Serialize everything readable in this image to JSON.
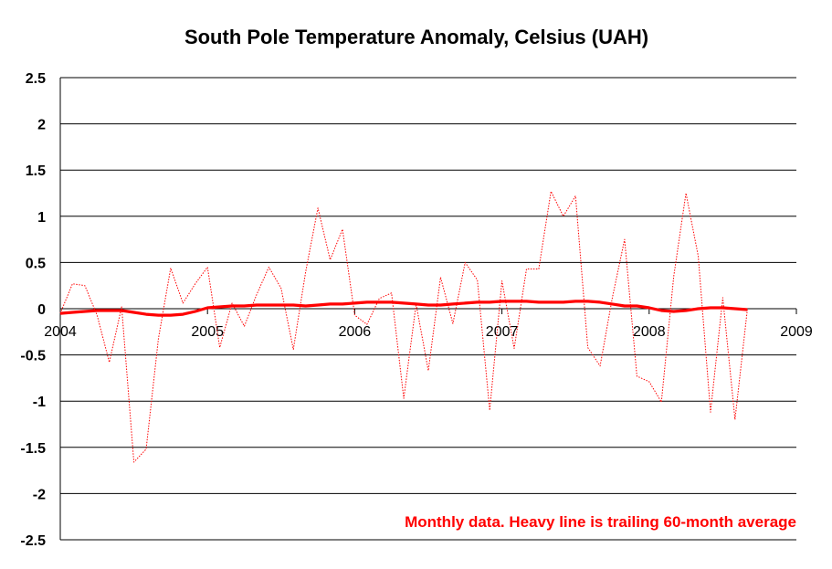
{
  "chart_data": {
    "type": "line",
    "title": "South Pole Temperature Anomaly, Celsius (UAH)",
    "annotation": "Monthly data.  Heavy line is trailing 60-month average",
    "xlabel": "",
    "ylabel": "",
    "xlim": [
      2004,
      2009
    ],
    "ylim": [
      -2.5,
      2.5
    ],
    "x_ticks": [
      "2004",
      "2005",
      "2006",
      "2007",
      "2008",
      "2009"
    ],
    "y_ticks": [
      "2.5",
      "2",
      "1.5",
      "1",
      "0.5",
      "0",
      "-0.5",
      "-1",
      "-1.5",
      "-2",
      "-2.5"
    ],
    "grid": true,
    "line_color": "#ff0000",
    "series": [
      {
        "style": "thin dotted",
        "x": [
          2004.0,
          2004.083,
          2004.167,
          2004.25,
          2004.333,
          2004.417,
          2004.5,
          2004.583,
          2004.667,
          2004.75,
          2004.833,
          2004.917,
          2005.0,
          2005.083,
          2005.167,
          2005.25,
          2005.333,
          2005.417,
          2005.5,
          2005.583,
          2005.667,
          2005.75,
          2005.833,
          2005.917,
          2006.0,
          2006.083,
          2006.167,
          2006.25,
          2006.333,
          2006.417,
          2006.5,
          2006.583,
          2006.667,
          2006.75,
          2006.833,
          2006.917,
          2007.0,
          2007.083,
          2007.167,
          2007.25,
          2007.333,
          2007.417,
          2007.5,
          2007.583,
          2007.667,
          2007.75,
          2007.833,
          2007.917,
          2008.0,
          2008.083,
          2008.167,
          2008.25,
          2008.333,
          2008.417,
          2008.5,
          2008.583,
          2008.667
        ],
        "values": [
          -0.05,
          0.27,
          0.25,
          -0.07,
          -0.58,
          0.02,
          -1.66,
          -1.52,
          -0.32,
          0.44,
          0.06,
          0.27,
          0.45,
          -0.42,
          0.06,
          -0.19,
          0.15,
          0.45,
          0.22,
          -0.44,
          0.4,
          1.09,
          0.53,
          0.86,
          -0.07,
          -0.17,
          0.11,
          0.17,
          -0.97,
          0.05,
          -0.67,
          0.34,
          -0.16,
          0.5,
          0.31,
          -1.1,
          0.3,
          -0.43,
          0.43,
          0.43,
          1.27,
          1.0,
          1.22,
          -0.42,
          -0.62,
          0.12,
          0.75,
          -0.73,
          -0.79,
          -1.01,
          0.35,
          1.25,
          0.57,
          -1.12,
          0.12,
          -1.2,
          -0.01
        ]
      },
      {
        "style": "heavy solid",
        "x": [
          2004.0,
          2004.083,
          2004.167,
          2004.25,
          2004.333,
          2004.417,
          2004.5,
          2004.583,
          2004.667,
          2004.75,
          2004.833,
          2004.917,
          2005.0,
          2005.083,
          2005.167,
          2005.25,
          2005.333,
          2005.417,
          2005.5,
          2005.583,
          2005.667,
          2005.75,
          2005.833,
          2005.917,
          2006.0,
          2006.083,
          2006.167,
          2006.25,
          2006.333,
          2006.417,
          2006.5,
          2006.583,
          2006.667,
          2006.75,
          2006.833,
          2006.917,
          2007.0,
          2007.083,
          2007.167,
          2007.25,
          2007.333,
          2007.417,
          2007.5,
          2007.583,
          2007.667,
          2007.75,
          2007.833,
          2007.917,
          2008.0,
          2008.083,
          2008.167,
          2008.25,
          2008.333,
          2008.417,
          2008.5,
          2008.583,
          2008.667
        ],
        "values": [
          -0.05,
          -0.04,
          -0.03,
          -0.02,
          -0.02,
          -0.02,
          -0.04,
          -0.06,
          -0.07,
          -0.07,
          -0.06,
          -0.03,
          0.01,
          0.02,
          0.03,
          0.03,
          0.04,
          0.04,
          0.04,
          0.04,
          0.03,
          0.04,
          0.05,
          0.05,
          0.06,
          0.07,
          0.07,
          0.07,
          0.06,
          0.05,
          0.04,
          0.04,
          0.05,
          0.06,
          0.07,
          0.07,
          0.08,
          0.08,
          0.08,
          0.07,
          0.07,
          0.07,
          0.08,
          0.08,
          0.07,
          0.05,
          0.03,
          0.03,
          0.01,
          -0.02,
          -0.03,
          -0.02,
          0.0,
          0.01,
          0.01,
          0.0,
          -0.01
        ]
      }
    ]
  }
}
